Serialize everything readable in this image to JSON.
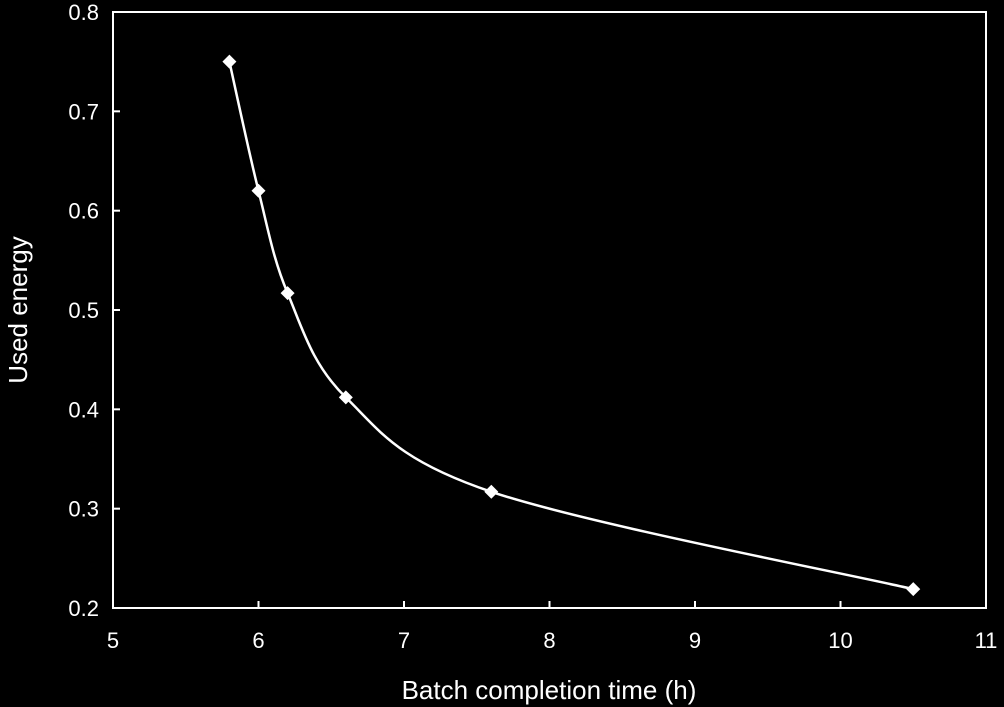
{
  "chart_data": {
    "type": "line",
    "title": "",
    "xlabel": "Batch completion time (h)",
    "ylabel": "Used energy",
    "xlim": [
      5,
      11
    ],
    "ylim": [
      0.2,
      0.8
    ],
    "x_ticks": [
      "5",
      "6",
      "7",
      "8",
      "9",
      "10",
      "11"
    ],
    "y_ticks": [
      "0.2",
      "0.3",
      "0.4",
      "0.5",
      "0.6",
      "0.7",
      "0.8"
    ],
    "grid": false,
    "legend": "none",
    "marker": "diamond",
    "line_style": "smooth",
    "colors": {
      "background": "#000000",
      "foreground": "#ffffff"
    },
    "series": [
      {
        "x": [
          5.8,
          6.0,
          6.2,
          6.6,
          7.6,
          10.5
        ],
        "y": [
          0.75,
          0.62,
          0.517,
          0.412,
          0.317,
          0.219
        ]
      }
    ]
  }
}
